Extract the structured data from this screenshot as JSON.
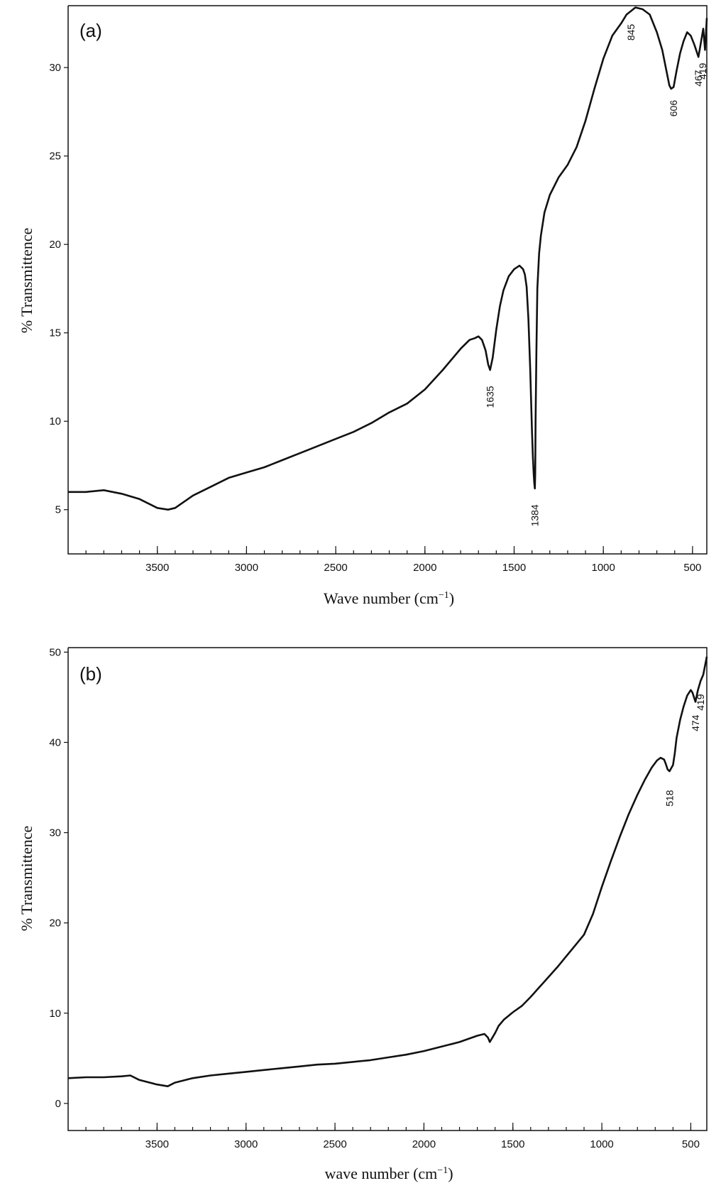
{
  "chart_data": [
    {
      "type": "line",
      "panel_label": "(a)",
      "xlabel": "Wave number (cm",
      "xlabel_sup": "−1",
      "xlabel_end": ")",
      "ylabel": "% Transmittence",
      "xlim": [
        4000,
        420
      ],
      "ylim": [
        2.5,
        33.5
      ],
      "xticks": [
        3500,
        3000,
        2500,
        2000,
        1500,
        1000,
        500
      ],
      "yticks": [
        5,
        10,
        15,
        20,
        25,
        30
      ],
      "series": [
        {
          "x": [
            4000,
            3900,
            3800,
            3700,
            3600,
            3500,
            3440,
            3400,
            3300,
            3200,
            3100,
            3000,
            2900,
            2800,
            2700,
            2600,
            2500,
            2400,
            2300,
            2200,
            2100,
            2000,
            1900,
            1800,
            1750,
            1720,
            1700,
            1680,
            1660,
            1645,
            1635,
            1620,
            1600,
            1580,
            1560,
            1530,
            1500,
            1470,
            1450,
            1440,
            1430,
            1420,
            1410,
            1400,
            1395,
            1390,
            1387,
            1384,
            1382,
            1380,
            1375,
            1370,
            1360,
            1350,
            1330,
            1300,
            1250,
            1200,
            1150,
            1100,
            1050,
            1000,
            950,
            900,
            870,
            845,
            820,
            780,
            740,
            700,
            670,
            650,
            640,
            630,
            620,
            606,
            590,
            570,
            550,
            530,
            510,
            490,
            480,
            467,
            455,
            440,
            430,
            420
          ],
          "y": [
            6.0,
            6.0,
            6.1,
            5.9,
            5.6,
            5.1,
            5.0,
            5.1,
            5.8,
            6.3,
            6.8,
            7.1,
            7.4,
            7.8,
            8.2,
            8.6,
            9.0,
            9.4,
            9.9,
            10.5,
            11.0,
            11.8,
            12.9,
            14.1,
            14.6,
            14.7,
            14.8,
            14.6,
            14.0,
            13.2,
            12.9,
            13.6,
            15.2,
            16.5,
            17.4,
            18.2,
            18.6,
            18.8,
            18.6,
            18.3,
            17.6,
            15.8,
            13.0,
            9.5,
            8.0,
            7.0,
            6.5,
            6.2,
            7.0,
            10.0,
            14.0,
            17.5,
            19.5,
            20.5,
            21.8,
            22.8,
            23.8,
            24.5,
            25.5,
            27.0,
            28.8,
            30.5,
            31.8,
            32.5,
            33.0,
            33.2,
            33.4,
            33.3,
            33.0,
            32.0,
            31.0,
            30.0,
            29.5,
            29.0,
            28.8,
            28.9,
            29.8,
            30.8,
            31.5,
            32.0,
            31.8,
            31.3,
            31.0,
            30.6,
            31.3,
            32.2,
            31.0,
            32.8
          ]
        }
      ],
      "annotations": [
        {
          "label": "1635",
          "x": 1635,
          "y": 12.9
        },
        {
          "label": "1384",
          "x": 1384,
          "y": 6.2
        },
        {
          "label": "845",
          "x": 845,
          "y": 33.2
        },
        {
          "label": "606",
          "x": 606,
          "y": 28.9
        },
        {
          "label": "467",
          "x": 467,
          "y": 30.6
        },
        {
          "label": "419",
          "x": 419,
          "y": 31.0
        }
      ]
    },
    {
      "type": "line",
      "panel_label": "(b)",
      "xlabel": "wave number (cm",
      "xlabel_sup": "−1",
      "xlabel_end": ")",
      "ylabel": "% Transmittence",
      "xlim": [
        4000,
        410
      ],
      "ylim": [
        -3,
        50.5
      ],
      "xticks": [
        3500,
        3000,
        2500,
        2000,
        1500,
        1000,
        500
      ],
      "yticks": [
        0,
        10,
        20,
        30,
        40,
        50
      ],
      "series": [
        {
          "x": [
            4000,
            3900,
            3800,
            3700,
            3650,
            3600,
            3500,
            3440,
            3400,
            3300,
            3200,
            3100,
            3000,
            2900,
            2800,
            2700,
            2600,
            2500,
            2400,
            2300,
            2200,
            2100,
            2000,
            1900,
            1800,
            1700,
            1660,
            1640,
            1630,
            1600,
            1580,
            1550,
            1500,
            1450,
            1400,
            1350,
            1300,
            1250,
            1200,
            1150,
            1100,
            1050,
            1000,
            950,
            900,
            850,
            800,
            760,
            720,
            690,
            670,
            650,
            640,
            630,
            620,
            600,
            590,
            580,
            560,
            540,
            520,
            500,
            490,
            474,
            460,
            445,
            430,
            420,
            410
          ],
          "y": [
            2.8,
            2.9,
            2.9,
            3.0,
            3.1,
            2.6,
            2.1,
            1.9,
            2.3,
            2.8,
            3.1,
            3.3,
            3.5,
            3.7,
            3.9,
            4.1,
            4.3,
            4.4,
            4.6,
            4.8,
            5.1,
            5.4,
            5.8,
            6.3,
            6.8,
            7.5,
            7.7,
            7.3,
            6.8,
            7.8,
            8.6,
            9.3,
            10.1,
            10.8,
            11.8,
            12.9,
            14.0,
            15.1,
            16.3,
            17.5,
            18.7,
            21.0,
            24.0,
            26.8,
            29.5,
            32.0,
            34.2,
            35.8,
            37.2,
            38.0,
            38.3,
            38.1,
            37.6,
            37.0,
            36.8,
            37.5,
            38.8,
            40.5,
            42.5,
            44.0,
            45.2,
            45.8,
            45.5,
            44.5,
            45.8,
            46.8,
            47.5,
            48.5,
            49.5
          ]
        }
      ],
      "annotations": [
        {
          "label": "518",
          "x": 620,
          "y": 36.8
        },
        {
          "label": "474",
          "x": 474,
          "y": 44.5
        },
        {
          "label": "419",
          "x": 445,
          "y": 46.8
        }
      ]
    }
  ]
}
